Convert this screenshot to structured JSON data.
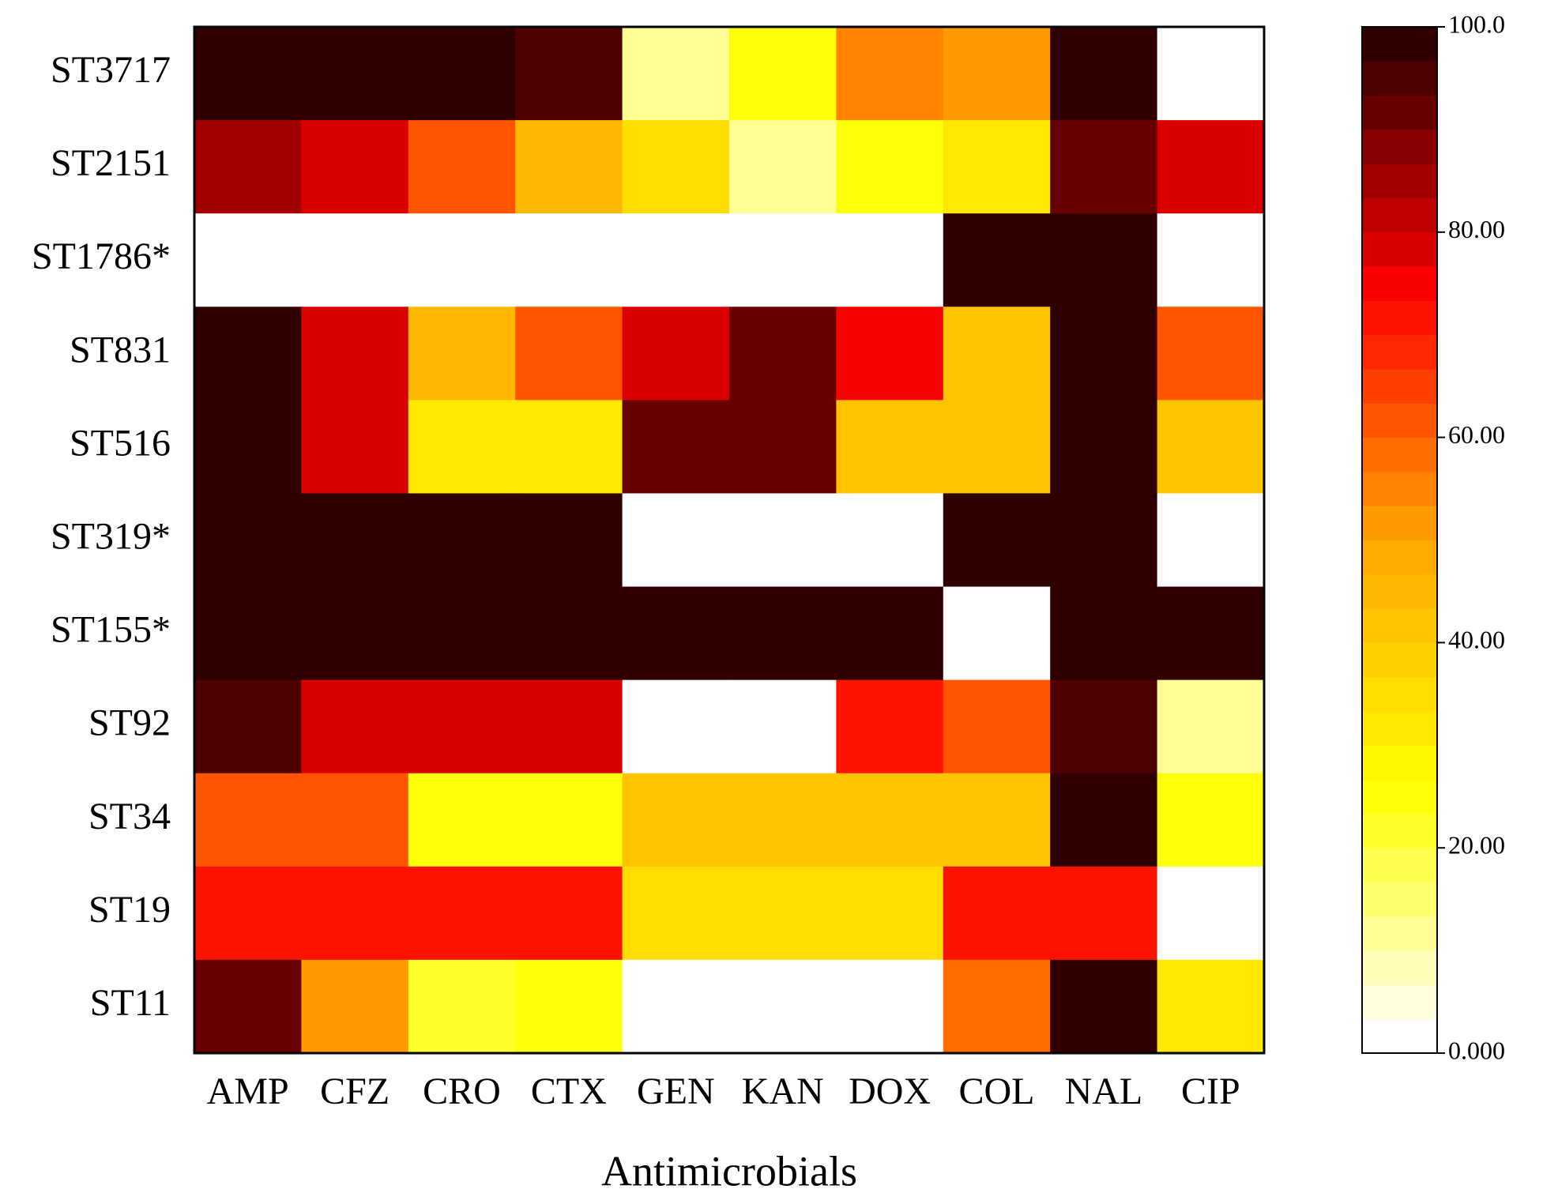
{
  "chart_data": {
    "type": "heatmap",
    "xlabel": "Antimicrobials",
    "categories": [
      "AMP",
      "CFZ",
      "CRO",
      "CTX",
      "GEN",
      "KAN",
      "DOX",
      "COL",
      "NAL",
      "CIP"
    ],
    "rows": [
      "ST3717",
      "ST2151",
      "ST1786*",
      "ST831",
      "ST516",
      "ST319*",
      "ST155*",
      "ST92",
      "ST34",
      "ST19",
      "ST11"
    ],
    "values": [
      [
        100,
        100,
        100,
        95,
        10,
        25,
        55,
        50,
        100,
        0
      ],
      [
        85,
        78,
        62,
        45,
        35,
        12,
        25,
        33,
        92,
        78
      ],
      [
        0,
        0,
        0,
        0,
        0,
        0,
        0,
        100,
        100,
        0
      ],
      [
        100,
        78,
        45,
        60,
        78,
        90,
        75,
        43,
        100,
        60
      ],
      [
        100,
        78,
        33,
        33,
        92,
        92,
        43,
        43,
        100,
        43
      ],
      [
        100,
        100,
        100,
        100,
        0,
        0,
        0,
        100,
        100,
        0
      ],
      [
        100,
        100,
        100,
        100,
        100,
        100,
        100,
        0,
        100,
        100
      ],
      [
        95,
        78,
        78,
        78,
        0,
        0,
        72,
        62,
        95,
        10
      ],
      [
        62,
        62,
        25,
        25,
        43,
        43,
        43,
        43,
        100,
        25
      ],
      [
        72,
        72,
        72,
        72,
        35,
        35,
        35,
        72,
        72,
        0
      ],
      [
        90,
        52,
        22,
        25,
        0,
        0,
        0,
        57,
        100,
        30
      ]
    ],
    "colormap": [
      "#ffffff",
      "#ffff00",
      "#ffa500",
      "#ff0000",
      "#300000"
    ],
    "levels": 30,
    "clim": [
      0,
      100
    ],
    "cticks": [
      {
        "value": 0,
        "label": "0.000"
      },
      {
        "value": 20,
        "label": "20.00"
      },
      {
        "value": 40,
        "label": "40.00"
      },
      {
        "value": 60,
        "label": "60.00"
      },
      {
        "value": 80,
        "label": "80.00"
      },
      {
        "value": 100,
        "label": "100.0"
      }
    ]
  }
}
